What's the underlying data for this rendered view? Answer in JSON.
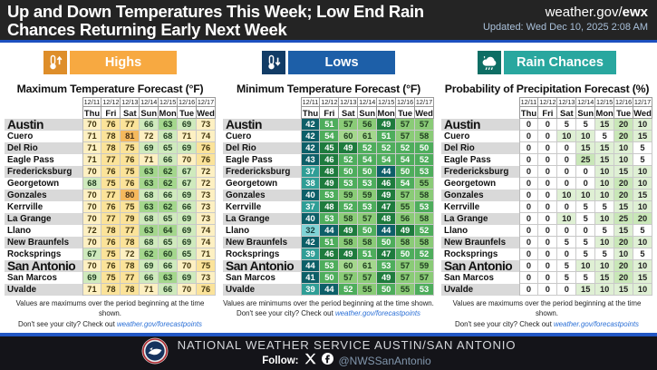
{
  "header": {
    "title": "Up and Down Temperatures This Week; Low End Rain Chances Returning Early Next Week",
    "site_prefix": "weather.gov/",
    "site_suffix": "ewx",
    "updated": "Updated: Wed Dec 10, 2025 2:08 AM"
  },
  "sections": [
    {
      "badge_label": "Highs",
      "icon": "thermometer-up-icon",
      "icon_bg": "#de8e2a",
      "badge_bg": "#f7a941",
      "footnote_line1": "Values are maximums over the period beginning at the time shown.",
      "footnote_prefix": "Don't see your city? Check out ",
      "footnote_link": "weather.gov/forecastpoints"
    },
    {
      "badge_label": "Lows",
      "icon": "thermometer-down-icon",
      "icon_bg": "#123c66",
      "badge_bg": "#1d5fa8",
      "footnote_line1": "Values are minimums over the period beginning at the time shown.",
      "footnote_prefix": "Don't see your city? Check out ",
      "footnote_link": "weather.gov/forecastpoints"
    },
    {
      "badge_label": "Rain Chances",
      "icon": "rain-cloud-icon",
      "icon_bg": "#0e6e64",
      "badge_bg": "#29a79f",
      "footnote_line1": "Values are maximums over the period beginning at the time shown.",
      "footnote_prefix": "Don't see your city? Check out ",
      "footnote_link": "weather.gov/forecastpoints"
    }
  ],
  "chart_data": [
    {
      "type": "table",
      "kind": "temperature",
      "title": "Maximum Temperature Forecast (°F)",
      "date_headers": [
        "12/11",
        "12/12",
        "12/13",
        "12/14",
        "12/15",
        "12/16",
        "12/17"
      ],
      "day_headers": [
        "Thu",
        "Fri",
        "Sat",
        "Sun",
        "Mon",
        "Tue",
        "Wed"
      ],
      "rows": [
        {
          "name": "Austin",
          "big": true,
          "values": [
            70,
            76,
            77,
            66,
            63,
            69,
            73
          ]
        },
        {
          "name": "Cuero",
          "values": [
            71,
            78,
            81,
            72,
            68,
            71,
            74
          ]
        },
        {
          "name": "Del Rio",
          "values": [
            71,
            78,
            75,
            69,
            65,
            69,
            76
          ]
        },
        {
          "name": "Eagle Pass",
          "values": [
            71,
            77,
            76,
            71,
            66,
            70,
            76
          ]
        },
        {
          "name": "Fredericksburg",
          "values": [
            70,
            76,
            75,
            63,
            62,
            67,
            72
          ]
        },
        {
          "name": "Georgetown",
          "values": [
            68,
            75,
            76,
            63,
            62,
            67,
            72
          ]
        },
        {
          "name": "Gonzales",
          "values": [
            70,
            77,
            80,
            68,
            66,
            69,
            73
          ]
        },
        {
          "name": "Kerrville",
          "values": [
            70,
            76,
            75,
            63,
            62,
            66,
            73
          ]
        },
        {
          "name": "La Grange",
          "values": [
            70,
            77,
            79,
            68,
            65,
            69,
            73
          ]
        },
        {
          "name": "Llano",
          "values": [
            72,
            78,
            77,
            63,
            64,
            69,
            74
          ]
        },
        {
          "name": "New Braunfels",
          "values": [
            70,
            76,
            78,
            68,
            65,
            69,
            74
          ]
        },
        {
          "name": "Rocksprings",
          "values": [
            67,
            75,
            72,
            62,
            60,
            65,
            71
          ]
        },
        {
          "name": "San Antonio",
          "big": true,
          "values": [
            70,
            76,
            78,
            69,
            66,
            70,
            75
          ]
        },
        {
          "name": "San Marcos",
          "values": [
            69,
            75,
            77,
            66,
            63,
            69,
            73
          ]
        },
        {
          "name": "Uvalde",
          "values": [
            71,
            78,
            78,
            71,
            66,
            70,
            76
          ]
        }
      ]
    },
    {
      "type": "table",
      "kind": "temperature",
      "title": "Minimum Temperature Forecast (°F)",
      "date_headers": [
        "12/11",
        "12/12",
        "12/13",
        "12/14",
        "12/15",
        "12/16",
        "12/17"
      ],
      "day_headers": [
        "Thu",
        "Fri",
        "Sat",
        "Sun",
        "Mon",
        "Tue",
        "Wed"
      ],
      "rows": [
        {
          "name": "Austin",
          "big": true,
          "values": [
            42,
            51,
            57,
            56,
            49,
            57,
            57
          ]
        },
        {
          "name": "Cuero",
          "values": [
            42,
            54,
            60,
            61,
            51,
            57,
            58
          ]
        },
        {
          "name": "Del Rio",
          "values": [
            42,
            45,
            49,
            52,
            52,
            52,
            50
          ]
        },
        {
          "name": "Eagle Pass",
          "values": [
            43,
            46,
            52,
            54,
            54,
            54,
            52
          ]
        },
        {
          "name": "Fredericksburg",
          "values": [
            37,
            48,
            50,
            50,
            44,
            50,
            53
          ]
        },
        {
          "name": "Georgetown",
          "values": [
            38,
            49,
            53,
            53,
            46,
            54,
            55
          ]
        },
        {
          "name": "Gonzales",
          "values": [
            40,
            53,
            59,
            59,
            49,
            57,
            58
          ]
        },
        {
          "name": "Kerrville",
          "values": [
            37,
            48,
            52,
            53,
            47,
            55,
            53
          ]
        },
        {
          "name": "La Grange",
          "values": [
            40,
            53,
            58,
            57,
            48,
            56,
            58
          ]
        },
        {
          "name": "Llano",
          "values": [
            32,
            44,
            49,
            50,
            44,
            49,
            52
          ]
        },
        {
          "name": "New Braunfels",
          "values": [
            42,
            51,
            58,
            58,
            50,
            58,
            58
          ]
        },
        {
          "name": "Rocksprings",
          "values": [
            39,
            46,
            49,
            51,
            47,
            50,
            52
          ]
        },
        {
          "name": "San Antonio",
          "big": true,
          "values": [
            44,
            53,
            60,
            61,
            53,
            57,
            59
          ]
        },
        {
          "name": "San Marcos",
          "values": [
            41,
            50,
            57,
            57,
            49,
            57,
            57
          ]
        },
        {
          "name": "Uvalde",
          "values": [
            39,
            44,
            52,
            55,
            50,
            55,
            53
          ]
        }
      ]
    },
    {
      "type": "table",
      "kind": "pop",
      "title": "Probability of Precipitation Forecast (%)",
      "date_headers": [
        "12/11",
        "12/12",
        "12/13",
        "12/14",
        "12/15",
        "12/16",
        "12/17"
      ],
      "day_headers": [
        "Thu",
        "Fri",
        "Sat",
        "Sun",
        "Mon",
        "Tue",
        "Wed"
      ],
      "rows": [
        {
          "name": "Austin",
          "big": true,
          "values": [
            0,
            0,
            5,
            5,
            15,
            20,
            10
          ]
        },
        {
          "name": "Cuero",
          "values": [
            0,
            0,
            10,
            10,
            5,
            20,
            15
          ]
        },
        {
          "name": "Del Rio",
          "values": [
            0,
            0,
            0,
            15,
            15,
            10,
            5
          ]
        },
        {
          "name": "Eagle Pass",
          "values": [
            0,
            0,
            0,
            25,
            15,
            10,
            5
          ]
        },
        {
          "name": "Fredericksburg",
          "values": [
            0,
            0,
            0,
            0,
            10,
            15,
            10
          ]
        },
        {
          "name": "Georgetown",
          "values": [
            0,
            0,
            0,
            0,
            10,
            20,
            10
          ]
        },
        {
          "name": "Gonzales",
          "values": [
            0,
            0,
            10,
            10,
            10,
            20,
            15
          ]
        },
        {
          "name": "Kerrville",
          "values": [
            0,
            0,
            0,
            5,
            5,
            15,
            10
          ]
        },
        {
          "name": "La Grange",
          "values": [
            0,
            0,
            10,
            5,
            10,
            25,
            20
          ]
        },
        {
          "name": "Llano",
          "values": [
            0,
            0,
            0,
            0,
            5,
            15,
            5
          ]
        },
        {
          "name": "New Braunfels",
          "values": [
            0,
            0,
            5,
            5,
            10,
            20,
            10
          ]
        },
        {
          "name": "Rocksprings",
          "values": [
            0,
            0,
            0,
            5,
            5,
            10,
            5
          ]
        },
        {
          "name": "San Antonio",
          "big": true,
          "values": [
            0,
            0,
            5,
            10,
            10,
            20,
            10
          ]
        },
        {
          "name": "San Marcos",
          "values": [
            0,
            0,
            5,
            5,
            15,
            20,
            15
          ]
        },
        {
          "name": "Uvalde",
          "values": [
            0,
            0,
            0,
            15,
            10,
            15,
            10
          ]
        }
      ]
    }
  ],
  "footer": {
    "org": "NATIONAL WEATHER SERVICE AUSTIN/SAN ANTONIO",
    "follow_label": "Follow:",
    "handle": "@NWSSanAntonio"
  }
}
